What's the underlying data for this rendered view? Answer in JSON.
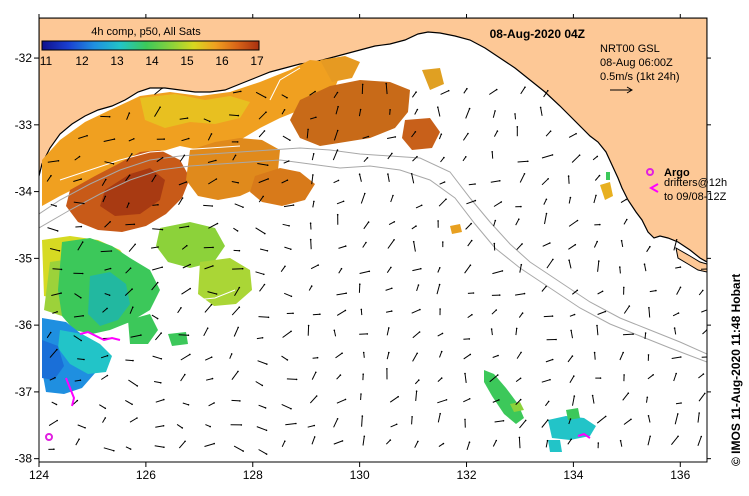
{
  "colorbar": {
    "title": "4h comp, p50, All Sats",
    "ticks": [
      "11",
      "12",
      "13",
      "14",
      "15",
      "16",
      "17"
    ],
    "colors": [
      "#10108c",
      "#1a3fd0",
      "#1f8fe0",
      "#22c4c8",
      "#3cc85a",
      "#8cd23a",
      "#d8d820",
      "#f0a020",
      "#d86418",
      "#a83010"
    ]
  },
  "date_label": "08-Aug-2020 04Z",
  "current_info": {
    "line1": "NRT00 GSL",
    "line2": "08-Aug 06:00Z",
    "line3": "0.5m/s (1kt 24h)"
  },
  "argo": {
    "label": "Argo",
    "drifter_line1": "drifters@12h",
    "drifter_line2": "to 09/08-12Z"
  },
  "credit": "© IMOS 11-Aug-2020 11:48 Hobart",
  "axes": {
    "x_ticks": [
      "124",
      "126",
      "128",
      "130",
      "132",
      "134",
      "136"
    ],
    "y_ticks": [
      "-32",
      "-33",
      "-34",
      "-35",
      "-36",
      "-37",
      "-38"
    ]
  },
  "colors": {
    "land": "#fdc896",
    "ocean": "#ffffff",
    "argo": "#e020e0",
    "drifter": "#ff00ff"
  }
}
